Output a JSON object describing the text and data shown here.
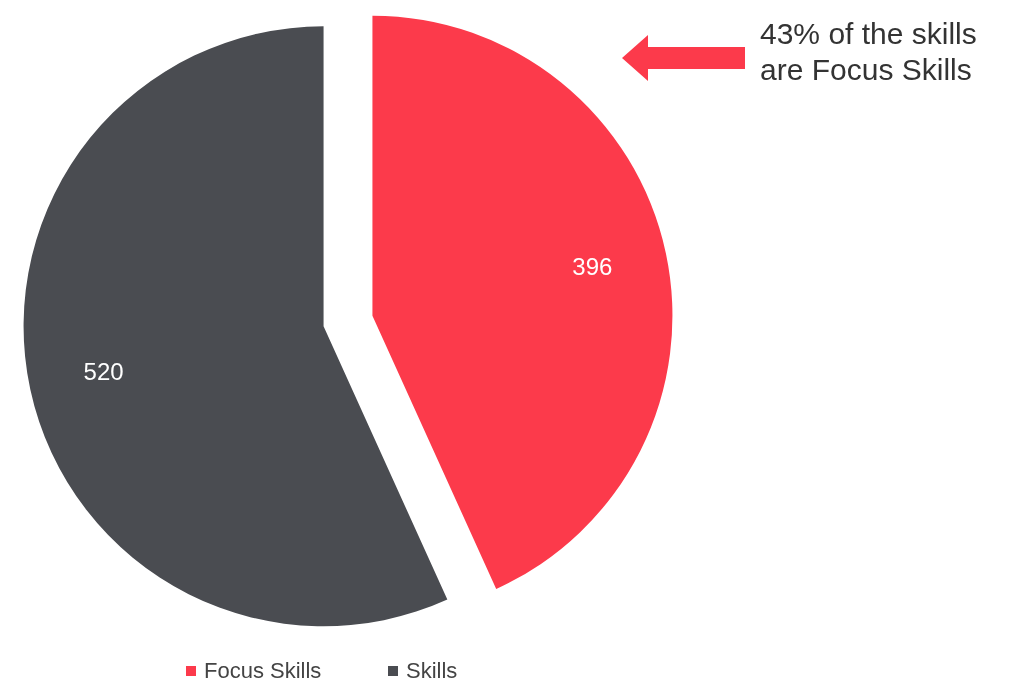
{
  "chart_data": {
    "type": "pie",
    "categories": [
      "Focus Skills",
      "Skills"
    ],
    "values": [
      396,
      520
    ],
    "colors": [
      "#fc3a4b",
      "#4a4c51"
    ],
    "data_labels": true,
    "legend": "bottom",
    "annotations": [
      "43% of the skills are Focus Skills"
    ]
  }
}
